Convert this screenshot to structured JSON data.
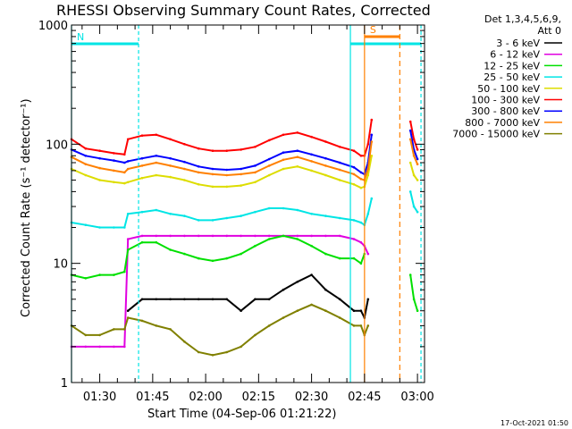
{
  "chart_data": {
    "type": "line",
    "title": "RHESSI Observing Summary Count Rates, Corrected",
    "xlabel": "Start Time (04-Sep-06 01:21:22)",
    "ylabel": "Corrected Count Rate (s⁻¹ detector⁻¹)",
    "yscale": "log",
    "ylim": [
      1,
      1000
    ],
    "xlim": [
      "01:22",
      "03:02"
    ],
    "x_ticks": [
      "01:30",
      "01:45",
      "02:00",
      "02:15",
      "02:30",
      "02:45",
      "03:00"
    ],
    "y_ticks": [
      "1",
      "10",
      "100",
      "1000"
    ],
    "legend_header": [
      "Det 1,3,4,5,6,9,",
      "Att 0"
    ],
    "legend_position": "right",
    "x": [
      "01:22",
      "01:26",
      "01:30",
      "01:34",
      "01:37",
      "01:38",
      "01:42",
      "01:46",
      "01:50",
      "01:54",
      "01:58",
      "02:02",
      "02:06",
      "02:10",
      "02:14",
      "02:18",
      "02:22",
      "02:26",
      "02:30",
      "02:34",
      "02:38",
      "02:42",
      "02:44",
      "02:45",
      "02:46",
      "02:47",
      "02:48",
      "02:49",
      "02:50",
      "02:51",
      "02:52",
      "02:53",
      "02:54",
      "02:55",
      "02:56",
      "02:57",
      "02:58",
      "02:59",
      "03:00"
    ],
    "series": [
      {
        "name": "3 - 6 keV",
        "color": "#000000",
        "values": [
          null,
          null,
          null,
          null,
          null,
          4,
          5,
          5,
          5,
          5,
          5,
          5,
          5,
          4,
          5,
          5,
          6,
          7,
          8,
          6,
          5,
          4,
          4,
          3.5,
          5,
          null,
          null,
          null,
          null,
          null,
          null,
          null,
          null,
          null,
          null,
          null,
          null,
          null,
          null
        ]
      },
      {
        "name": "6 - 12 keV",
        "color": "#e000e0",
        "values": [
          2,
          2,
          2,
          2,
          2,
          16,
          17,
          17,
          17,
          17,
          17,
          17,
          17,
          17,
          17,
          17,
          17,
          17,
          17,
          17,
          17,
          16,
          15,
          14,
          12,
          null,
          null,
          null,
          null,
          null,
          null,
          null,
          null,
          null,
          null,
          null,
          null,
          null,
          null
        ]
      },
      {
        "name": "12 - 25 keV",
        "color": "#00e000",
        "values": [
          8,
          7.5,
          8,
          8,
          8.5,
          13,
          15,
          15,
          13,
          12,
          11,
          10.5,
          11,
          12,
          14,
          16,
          17,
          16,
          14,
          12,
          11,
          11,
          10,
          12,
          null,
          null,
          null,
          null,
          null,
          null,
          null,
          null,
          null,
          null,
          null,
          null,
          8,
          5,
          4
        ]
      },
      {
        "name": "25 - 50 keV",
        "color": "#00e5e5",
        "values": [
          22,
          21,
          20,
          20,
          20,
          26,
          27,
          28,
          26,
          25,
          23,
          23,
          24,
          25,
          27,
          29,
          29,
          28,
          26,
          25,
          24,
          23,
          22,
          21,
          26,
          35,
          null,
          null,
          null,
          null,
          null,
          null,
          null,
          null,
          null,
          null,
          40,
          30,
          27
        ]
      },
      {
        "name": "50 - 100 keV",
        "color": "#dddd00",
        "values": [
          62,
          55,
          50,
          48,
          47,
          48,
          52,
          55,
          53,
          50,
          46,
          44,
          44,
          45,
          48,
          55,
          62,
          65,
          60,
          55,
          50,
          46,
          43,
          44,
          55,
          80,
          null,
          null,
          null,
          null,
          null,
          null,
          null,
          null,
          null,
          null,
          70,
          55,
          50
        ]
      },
      {
        "name": "100 - 300 keV",
        "color": "#ff0000",
        "values": [
          110,
          92,
          88,
          84,
          82,
          110,
          118,
          120,
          110,
          100,
          92,
          88,
          88,
          90,
          95,
          108,
          120,
          125,
          115,
          105,
          95,
          88,
          80,
          80,
          100,
          160,
          null,
          null,
          null,
          null,
          null,
          null,
          null,
          null,
          null,
          null,
          155,
          110,
          90
        ]
      },
      {
        "name": "300 - 800 keV",
        "color": "#0000ff",
        "values": [
          90,
          80,
          76,
          73,
          70,
          72,
          76,
          80,
          76,
          71,
          65,
          62,
          61,
          62,
          66,
          75,
          85,
          88,
          82,
          76,
          70,
          64,
          58,
          56,
          70,
          120,
          null,
          null,
          null,
          null,
          null,
          null,
          null,
          null,
          null,
          null,
          130,
          90,
          75
        ]
      },
      {
        "name": "800 - 7000 keV",
        "color": "#ff8000",
        "values": [
          78,
          68,
          63,
          60,
          58,
          62,
          66,
          70,
          66,
          62,
          58,
          56,
          55,
          56,
          58,
          66,
          74,
          78,
          72,
          66,
          61,
          56,
          51,
          50,
          62,
          105,
          null,
          null,
          null,
          null,
          null,
          null,
          null,
          null,
          null,
          null,
          110,
          80,
          68
        ]
      },
      {
        "name": "7000 - 15000 keV",
        "color": "#808000",
        "values": [
          3,
          2.5,
          2.5,
          2.8,
          2.8,
          3.5,
          3.3,
          3,
          2.8,
          2.2,
          1.8,
          1.7,
          1.8,
          2,
          2.5,
          3,
          3.5,
          4,
          4.5,
          4,
          3.5,
          3,
          3,
          2.5,
          3,
          null,
          null,
          null,
          null,
          null,
          null,
          null,
          null,
          null,
          null,
          null,
          null,
          null,
          null
        ]
      }
    ],
    "annotations": [
      {
        "label": "N",
        "color": "#00e5e5",
        "kind": "night",
        "from": "01:22",
        "to": "01:41"
      },
      {
        "label": "",
        "color": "#00e5e5",
        "kind": "night",
        "from": "02:41",
        "to": "03:01"
      },
      {
        "label": "S",
        "color": "#ff8000",
        "kind": "saa",
        "from": "02:45",
        "to": "02:55"
      }
    ],
    "grid": false
  },
  "footer": {
    "timestamp": "17-Oct-2021 01:50"
  }
}
